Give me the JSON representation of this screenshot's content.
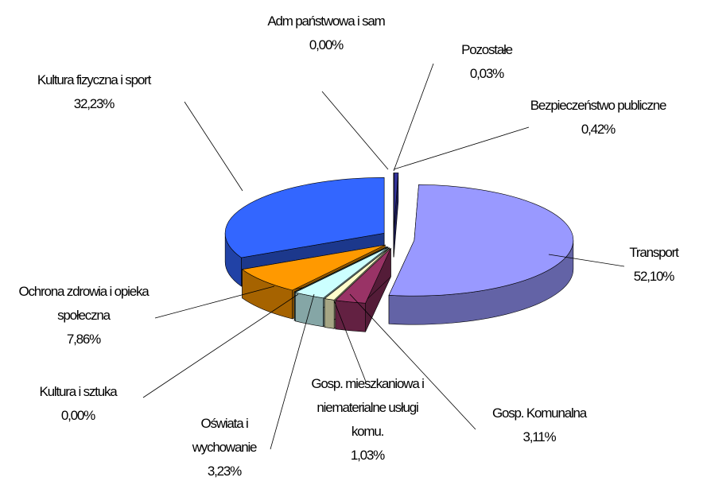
{
  "chart_data": {
    "type": "pie3d",
    "categories": [
      "Pozostałe",
      "Bezpieczeństwo publiczne",
      "Transport",
      "Gosp. Komunalna",
      "Gosp. mieszkaniowa i niematerialne usługi komu.",
      "Oświata i wychowanie",
      "Kultura i sztuka",
      "Ochrona zdrowia i opieka społeczna",
      "Kultura fizyczna i sport",
      "Adm państwowa i sam"
    ],
    "values": [
      0.03,
      0.42,
      52.1,
      3.11,
      1.03,
      3.23,
      0.0,
      7.86,
      32.23,
      0.0
    ],
    "value_labels": [
      "0,03%",
      "0,42%",
      "52,10%",
      "3,11%",
      "1,03%",
      "3,23%",
      "0,00%",
      "7,86%",
      "32,23%",
      "0,00%"
    ],
    "colors": [
      "#000080",
      "#333399",
      "#9999ff",
      "#993366",
      "#ffffcc",
      "#ccffff",
      "#669999",
      "#ff9900",
      "#3366ff",
      "#808080"
    ]
  }
}
